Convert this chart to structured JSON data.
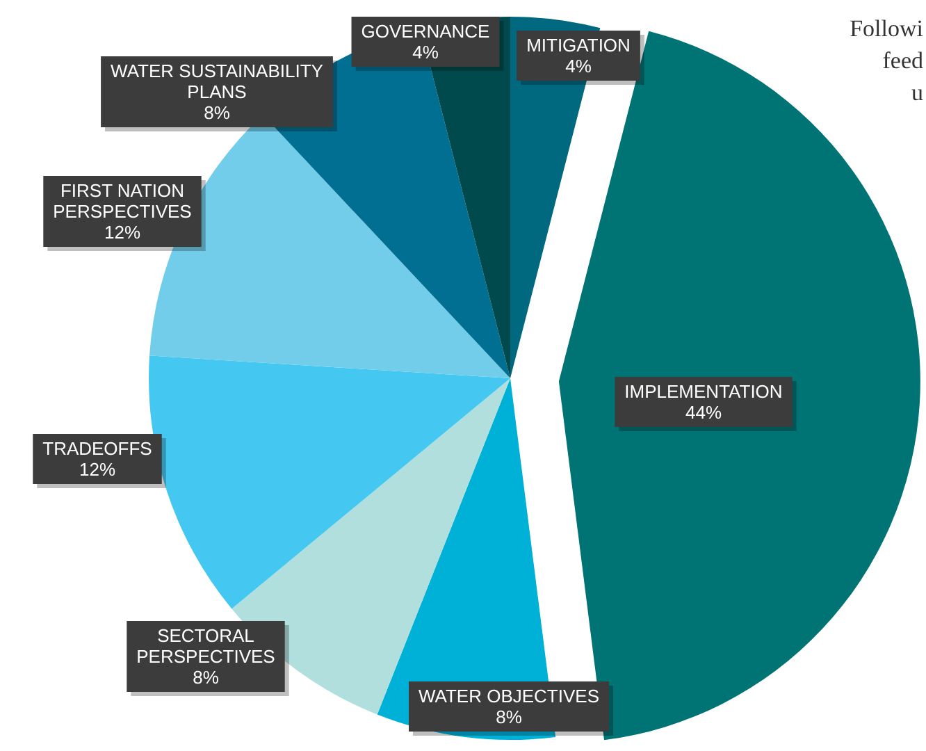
{
  "chart_data": {
    "type": "pie",
    "categories": [
      "MITIGATION",
      "IMPLEMENTATION",
      "WATER OBJECTIVES",
      "SECTORAL PERSPECTIVES",
      "TRADEOFFS",
      "FIRST NATION PERSPECTIVES",
      "WATER SUSTAINABILITY PLANS",
      "GOVERNANCE"
    ],
    "values": [
      4,
      44,
      8,
      8,
      12,
      12,
      8,
      4
    ],
    "colors": [
      "#00687f",
      "#007374",
      "#00b1d7",
      "#b0dfdd",
      "#44c8f2",
      "#71cde9",
      "#006f92",
      "#004a4d"
    ],
    "data_labels": true,
    "value_labels": [
      "4%",
      "44%",
      "8%",
      "8%",
      "12%",
      "12%",
      "8%",
      "4%"
    ],
    "annotations": [
      "Followi",
      "feed",
      "u"
    ]
  }
}
